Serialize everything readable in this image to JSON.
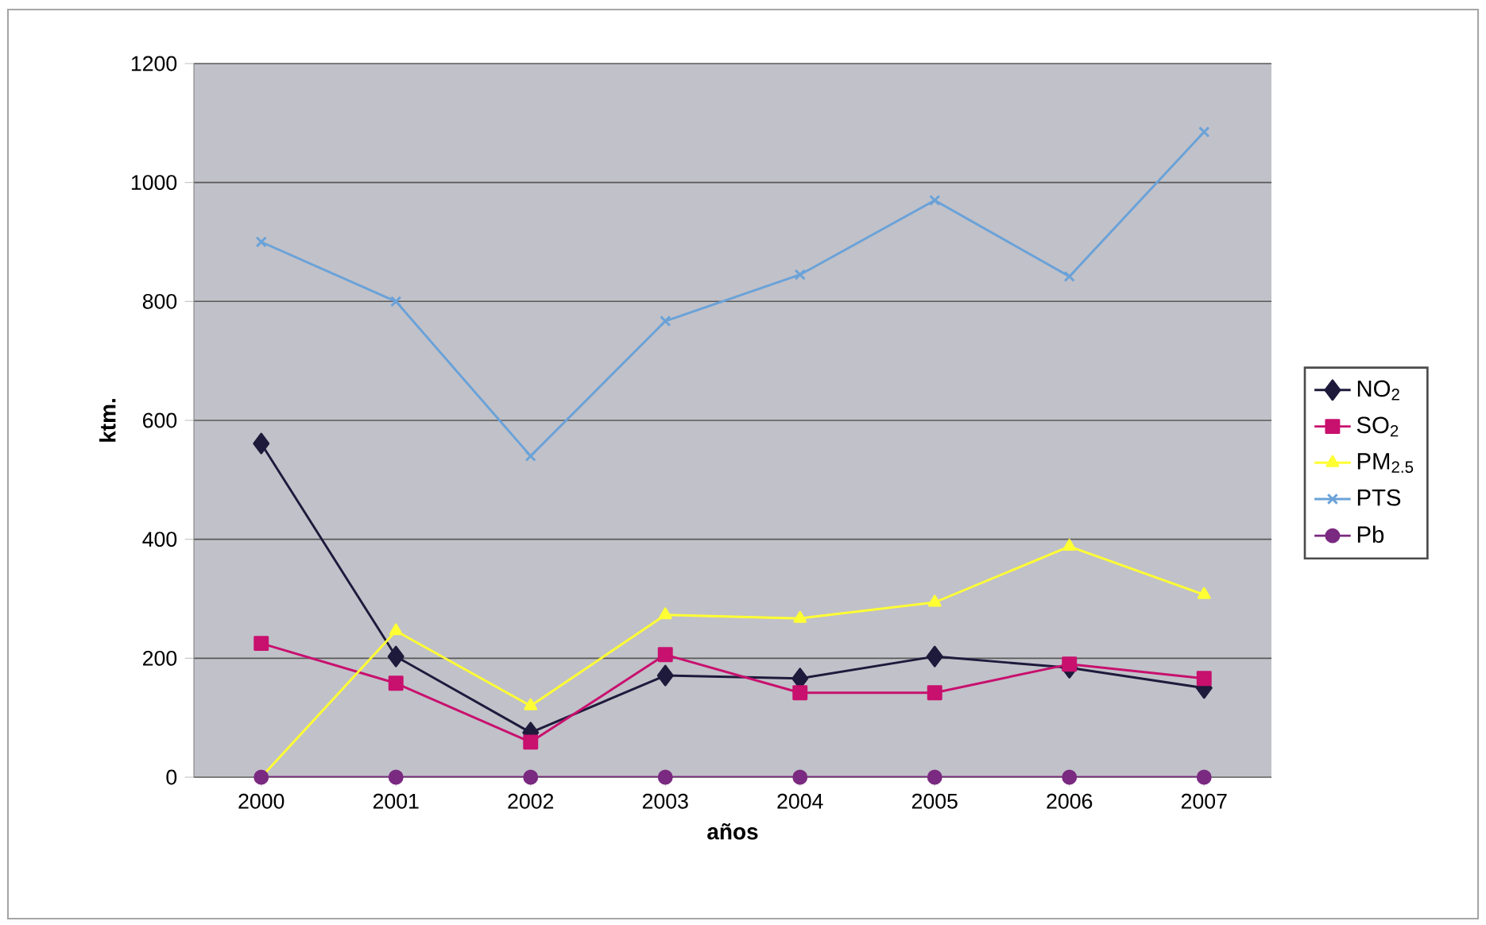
{
  "chart_data": {
    "type": "line",
    "xlabel": "años",
    "ylabel": "ktm.",
    "categories": [
      "2000",
      "2001",
      "2002",
      "2003",
      "2004",
      "2005",
      "2006",
      "2007"
    ],
    "series": [
      {
        "name": "NO$_{2}$",
        "color": "#1e1a3c",
        "marker": "diamond",
        "values": [
          561,
          203,
          75,
          171,
          166,
          203,
          184,
          150
        ]
      },
      {
        "name": "SO$_{2}$",
        "color": "#c8106e",
        "marker": "square",
        "values": [
          225,
          158,
          59,
          206,
          142,
          142,
          190,
          166
        ]
      },
      {
        "name": "PM$_{2.5}$",
        "color": "#ffff33",
        "marker": "triangle",
        "values": [
          0,
          246,
          120,
          273,
          267,
          294,
          388,
          307
        ]
      },
      {
        "name": "PTS",
        "color": "#6aa2d8",
        "marker": "cross",
        "values": [
          900,
          800,
          540,
          767,
          845,
          970,
          842,
          1085
        ]
      },
      {
        "name": "Pb",
        "color": "#7a2a80",
        "marker": "circle",
        "values": [
          0,
          0,
          0,
          0,
          0,
          0,
          0,
          0
        ]
      }
    ],
    "ylim": [
      0,
      1200
    ],
    "yticks": [
      0,
      200,
      400,
      600,
      800,
      1000,
      1200
    ],
    "grid": "y",
    "legend": "right"
  }
}
